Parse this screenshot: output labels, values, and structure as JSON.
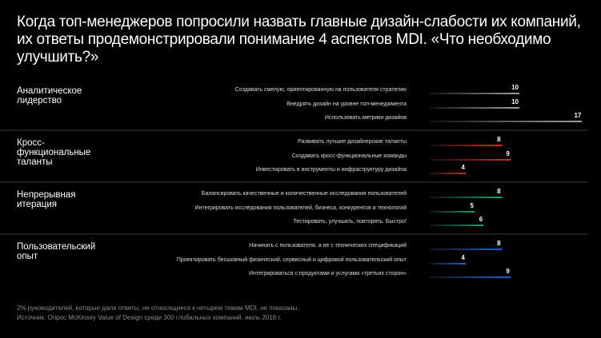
{
  "title": "Когда топ-менеджеров попросили назвать главные дизайн-слабости их компаний, их ответы продемонстрировали понимание 4 аспектов MDI. «Что необходимо улучшить?»",
  "chart_data": {
    "type": "bar",
    "orientation": "horizontal",
    "groups": [
      {
        "name": "Аналитическое\nлидерство",
        "color": "#a0a0a0",
        "items": [
          {
            "label": "Создавать смелую, ориентированную на пользователя стратегию",
            "value": 10
          },
          {
            "label": "Внедрять дизайн на уровне топ-менеджмента",
            "value": 10
          },
          {
            "label": "Использовать метрики дизайна",
            "value": 17
          }
        ]
      },
      {
        "name": "Кросс-\nфункциональные\nталанты",
        "color": "#e0261f",
        "items": [
          {
            "label": "Развивать лучшие дизайнерские таланты",
            "value": 8
          },
          {
            "label": "Создавать кросс-функциональные команды",
            "value": 9
          },
          {
            "label": "Инвестировать в инструменты и инфраструктуру дизайна",
            "value": 4
          }
        ]
      },
      {
        "name": "Непрерывная\nитерация",
        "color": "#14a57a",
        "items": [
          {
            "label": "Балансировать качественные и количественные исследования пользователей",
            "value": 8
          },
          {
            "label": "Интегрировать исследования пользователей, бизнеса, конкурентов и технологий",
            "value": 5
          },
          {
            "label": "Тестировать, улучшать, повторять. Быстро!",
            "value": 6
          }
        ]
      },
      {
        "name": "Пользовательский\nопыт",
        "color": "#1f63d6",
        "items": [
          {
            "label": "Начинать с пользователя, а не с технических спецификаций",
            "value": 8
          },
          {
            "label": "Проектировать бесшовный физический, сервисный и цифровой пользовательский опыт",
            "value": 4
          },
          {
            "label": "Интегрироваться с продуктами и услугами «третьих сторон»",
            "value": 9
          }
        ]
      }
    ]
  },
  "footer": {
    "note": "2% руководителей, которые дали ответы, не относящиеся к четырем темам MDI, не показаны.",
    "source": "Источник: Опрос McKinsey Value of Design среди 300 глобальных компаний, июль 2018 г."
  }
}
